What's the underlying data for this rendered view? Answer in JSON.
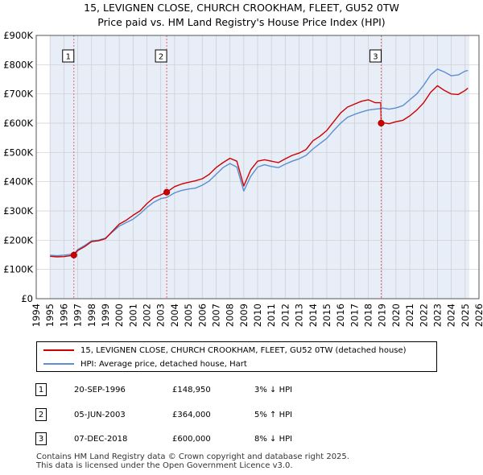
{
  "title_line1": "15, LEVIGNEN CLOSE, CHURCH CROOKHAM, FLEET, GU52 0TW",
  "title_line2": "Price paid vs. HM Land Registry's House Price Index (HPI)",
  "legend": {
    "property_label": "15, LEVIGNEN CLOSE, CHURCH CROOKHAM, FLEET, GU52 0TW (detached house)",
    "hpi_label": "HPI: Average price, detached house, Hart"
  },
  "transactions": [
    {
      "num": "1",
      "date": "20-SEP-1996",
      "price": "£148,950",
      "hpi": "3% ↓ HPI"
    },
    {
      "num": "2",
      "date": "05-JUN-2003",
      "price": "£364,000",
      "hpi": "5% ↑ HPI"
    },
    {
      "num": "3",
      "date": "07-DEC-2018",
      "price": "£600,000",
      "hpi": "8% ↓ HPI"
    }
  ],
  "footer_line1": "Contains HM Land Registry data © Crown copyright and database right 2025.",
  "footer_line2": "This data is licensed under the Open Government Licence v3.0.",
  "chart_data": {
    "type": "line",
    "title": "15, LEVIGNEN CLOSE, CHURCH CROOKHAM, FLEET, GU52 0TW",
    "subtitle": "Price paid vs. HM Land Registry's House Price Index (HPI)",
    "xlim": [
      1994,
      2026
    ],
    "ylim": [
      0,
      900000
    ],
    "x_ticks": [
      "1994",
      "1995",
      "1996",
      "1997",
      "1998",
      "1999",
      "2000",
      "2001",
      "2002",
      "2003",
      "2004",
      "2005",
      "2006",
      "2007",
      "2008",
      "2009",
      "2010",
      "2011",
      "2012",
      "2013",
      "2014",
      "2015",
      "2016",
      "2017",
      "2018",
      "2019",
      "2020",
      "2021",
      "2022",
      "2023",
      "2024",
      "2025",
      "2026"
    ],
    "y_ticks": [
      {
        "value": 0,
        "label": "£0"
      },
      {
        "value": 100000,
        "label": "£100K"
      },
      {
        "value": 200000,
        "label": "£200K"
      },
      {
        "value": 300000,
        "label": "£300K"
      },
      {
        "value": 400000,
        "label": "£400K"
      },
      {
        "value": 500000,
        "label": "£500K"
      },
      {
        "value": 600000,
        "label": "£600K"
      },
      {
        "value": 700000,
        "label": "£700K"
      },
      {
        "value": 800000,
        "label": "£800K"
      },
      {
        "value": 900000,
        "label": "£900K"
      }
    ],
    "data_range": [
      1995,
      2025.3
    ],
    "colors": {
      "property": "#cc0000",
      "hpi": "#5b8fcf",
      "shade": "#e8eef8",
      "grid": "#cccccc",
      "marker_line": "#dd6666"
    },
    "series": [
      {
        "name": "15, LEVIGNEN CLOSE, CHURCH CROOKHAM, FLEET, GU52 0TW (detached house)",
        "color": "#cc0000",
        "x": [
          1995.0,
          1995.5,
          1996.0,
          1996.72,
          1997.0,
          1997.5,
          1998.0,
          1998.5,
          1999.0,
          1999.5,
          2000.0,
          2000.5,
          2001.0,
          2001.5,
          2002.0,
          2002.5,
          2003.0,
          2003.43,
          2004.0,
          2004.5,
          2005.0,
          2005.5,
          2006.0,
          2006.5,
          2007.0,
          2007.5,
          2008.0,
          2008.5,
          2009.0,
          2009.5,
          2010.0,
          2010.5,
          2011.0,
          2011.5,
          2012.0,
          2012.5,
          2013.0,
          2013.5,
          2014.0,
          2014.5,
          2015.0,
          2015.5,
          2016.0,
          2016.5,
          2017.0,
          2017.5,
          2018.0,
          2018.5,
          2018.9,
          2018.93,
          2019.0,
          2019.5,
          2020.0,
          2020.5,
          2021.0,
          2021.5,
          2022.0,
          2022.5,
          2023.0,
          2023.5,
          2024.0,
          2024.5,
          2025.0,
          2025.2
        ],
        "y": [
          145000,
          143000,
          144000,
          148950,
          165000,
          178000,
          195000,
          198000,
          205000,
          230000,
          255000,
          268000,
          285000,
          300000,
          325000,
          345000,
          355000,
          364000,
          383000,
          392000,
          398000,
          403000,
          410000,
          425000,
          448000,
          465000,
          480000,
          470000,
          385000,
          440000,
          470000,
          475000,
          470000,
          465000,
          478000,
          490000,
          498000,
          510000,
          540000,
          555000,
          575000,
          605000,
          635000,
          655000,
          665000,
          675000,
          680000,
          670000,
          670000,
          600000,
          602000,
          598000,
          605000,
          610000,
          625000,
          645000,
          670000,
          705000,
          728000,
          712000,
          700000,
          698000,
          712000,
          720000
        ]
      },
      {
        "name": "HPI: Average price, detached house, Hart",
        "color": "#5b8fcf",
        "x": [
          1995.0,
          1995.5,
          1996.0,
          1996.72,
          1997.0,
          1997.5,
          1998.0,
          1998.5,
          1999.0,
          1999.5,
          2000.0,
          2000.5,
          2001.0,
          2001.5,
          2002.0,
          2002.5,
          2003.0,
          2003.43,
          2004.0,
          2004.5,
          2005.0,
          2005.5,
          2006.0,
          2006.5,
          2007.0,
          2007.5,
          2008.0,
          2008.5,
          2009.0,
          2009.5,
          2010.0,
          2010.5,
          2011.0,
          2011.5,
          2012.0,
          2012.5,
          2013.0,
          2013.5,
          2014.0,
          2014.5,
          2015.0,
          2015.5,
          2016.0,
          2016.5,
          2017.0,
          2017.5,
          2018.0,
          2018.5,
          2018.93,
          2019.0,
          2019.5,
          2020.0,
          2020.5,
          2021.0,
          2021.5,
          2022.0,
          2022.5,
          2023.0,
          2023.5,
          2024.0,
          2024.5,
          2025.0,
          2025.2
        ],
        "y": [
          149000,
          147000,
          149000,
          153000,
          168000,
          182000,
          198000,
          200000,
          207000,
          228000,
          248000,
          260000,
          272000,
          290000,
          312000,
          330000,
          342000,
          346000,
          362000,
          370000,
          375000,
          378000,
          388000,
          402000,
          425000,
          448000,
          462000,
          450000,
          368000,
          418000,
          450000,
          458000,
          452000,
          448000,
          460000,
          470000,
          478000,
          490000,
          512000,
          530000,
          548000,
          575000,
          600000,
          620000,
          630000,
          638000,
          645000,
          648000,
          650000,
          652000,
          648000,
          652000,
          660000,
          680000,
          700000,
          730000,
          765000,
          785000,
          775000,
          762000,
          765000,
          778000,
          780000
        ]
      }
    ],
    "sales": [
      {
        "label": "1",
        "x": 1996.72,
        "y": 148950
      },
      {
        "label": "2",
        "x": 2003.43,
        "y": 364000
      },
      {
        "label": "3",
        "x": 2018.93,
        "y": 600000
      }
    ]
  }
}
